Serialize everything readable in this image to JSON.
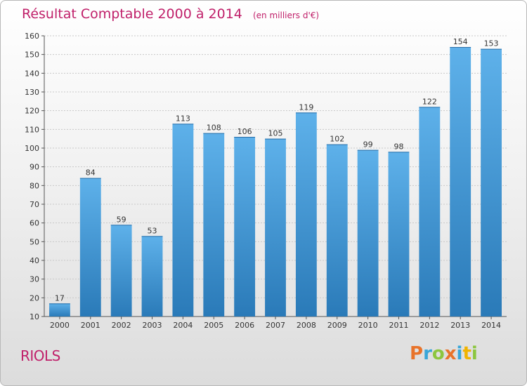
{
  "chart_data": {
    "type": "bar",
    "title": "Résultat Comptable 2000 à 2014",
    "subtitle": "(en milliers d'€)",
    "categories": [
      "2000",
      "2001",
      "2002",
      "2003",
      "2004",
      "2005",
      "2006",
      "2007",
      "2008",
      "2009",
      "2010",
      "2011",
      "2012",
      "2013",
      "2014"
    ],
    "values": [
      17,
      84,
      59,
      53,
      113,
      108,
      106,
      105,
      119,
      102,
      99,
      98,
      122,
      154,
      153
    ],
    "ylim": [
      10,
      160
    ],
    "yticks": [
      10,
      20,
      30,
      40,
      50,
      60,
      70,
      80,
      90,
      100,
      110,
      120,
      130,
      140,
      150,
      160
    ],
    "grid": true,
    "bar_color_top": "#5eb1ea",
    "bar_color_bottom": "#2a7ab8"
  },
  "footer": {
    "town": "RIOLS",
    "logo": "Proxiti"
  },
  "colors": {
    "title": "#c0206a",
    "logo_letters": [
      "#e8732a",
      "#39a6d8",
      "#8cc63f",
      "#e8732a",
      "#39a6d8",
      "#f0b400",
      "#8cc63f"
    ]
  }
}
